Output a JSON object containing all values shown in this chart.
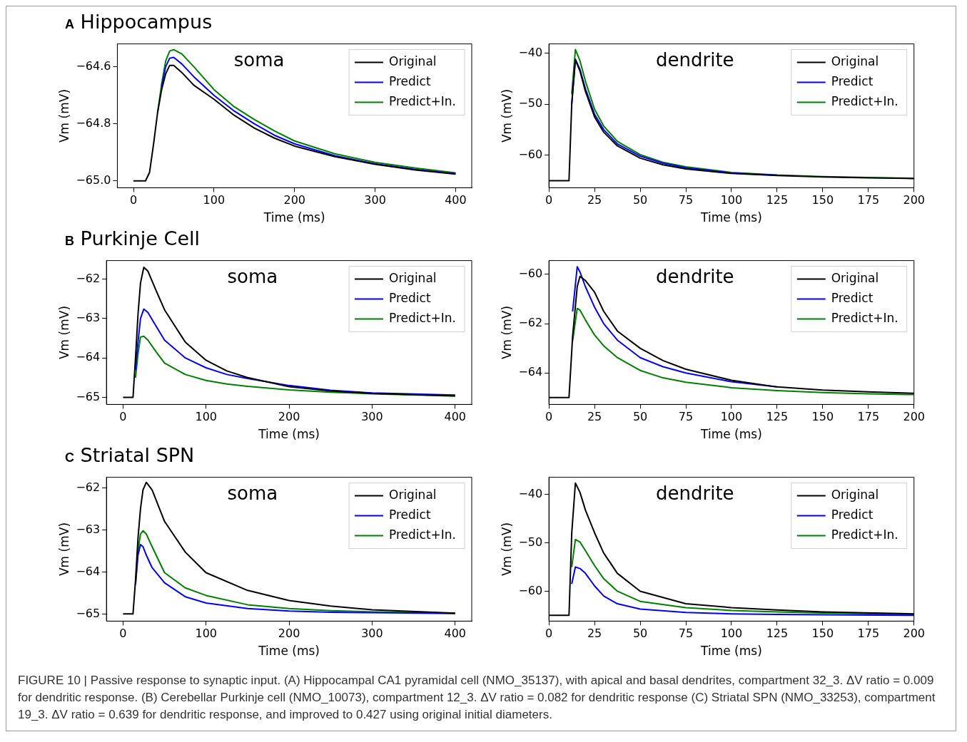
{
  "chart_data": [
    {
      "type": "line",
      "title": "A Hippocampus",
      "xlabel": "Time (ms)",
      "ylabel": "Vm (mV)",
      "annotations": [
        "soma"
      ],
      "legend": "top right",
      "grid": false,
      "marker": "none",
      "line_style": "solid",
      "xlim": [
        -20,
        420
      ],
      "xticks": [
        0,
        100,
        200,
        300,
        400
      ],
      "ylim": [
        -65.024,
        -64.52
      ],
      "yticks": [
        {
          "value": -65,
          "label": "−65.0"
        },
        {
          "value": -64.8,
          "label": "−64.8"
        },
        {
          "value": -64.6,
          "label": "−64.6"
        }
      ],
      "x": [
        0,
        15,
        20,
        25,
        30,
        35,
        40,
        45,
        50,
        60,
        75,
        100,
        125,
        150,
        175,
        200,
        250,
        300,
        350,
        400
      ],
      "series": [
        {
          "name": "Original",
          "color": "#000000",
          "values": [
            -65,
            -65,
            -64.97,
            -64.87,
            -64.76,
            -64.68,
            -64.625,
            -64.595,
            -64.595,
            -64.62,
            -64.665,
            -64.714,
            -64.77,
            -64.815,
            -64.85,
            -64.878,
            -64.915,
            -64.942,
            -64.962,
            -64.976
          ]
        },
        {
          "name": "Predict",
          "color": "#0000ff",
          "values": [
            null,
            null,
            null,
            null,
            null,
            -64.67,
            -64.6,
            -64.57,
            -64.567,
            -64.59,
            -64.635,
            -64.7,
            -64.755,
            -64.8,
            -64.84,
            -64.87,
            -64.912,
            -64.94,
            -64.96,
            -64.975
          ]
        },
        {
          "name": "Predict+In.",
          "color": "#008000",
          "values": [
            null,
            null,
            null,
            null,
            -64.76,
            -64.66,
            -64.58,
            -64.545,
            -64.54,
            -64.555,
            -64.6,
            -64.68,
            -64.74,
            -64.785,
            -64.825,
            -64.86,
            -64.905,
            -64.935,
            -64.955,
            -64.972
          ]
        }
      ]
    },
    {
      "type": "line",
      "xlabel": "Time (ms)",
      "ylabel": "Vm (mV)",
      "annotations": [
        "dendrite"
      ],
      "legend": "top right",
      "grid": false,
      "marker": "none",
      "line_style": "solid",
      "xlim": [
        0,
        200
      ],
      "xticks": [
        0,
        25,
        50,
        75,
        100,
        125,
        150,
        175,
        200
      ],
      "ylim": [
        -66.4,
        -38.2
      ],
      "yticks": [
        -60,
        -50,
        -40
      ],
      "x": [
        0,
        10,
        11,
        12.5,
        14.5,
        17,
        20,
        25,
        30,
        37.5,
        50,
        62.5,
        75,
        100,
        125,
        150,
        175,
        200
      ],
      "series": [
        {
          "name": "Original",
          "color": "#000000",
          "values": [
            -65,
            -65,
            -65,
            -50,
            -41.3,
            -43.5,
            -47.5,
            -52.5,
            -55.5,
            -58.2,
            -60.6,
            -61.9,
            -62.7,
            -63.6,
            -64,
            -64.3,
            -64.45,
            -64.6
          ]
        },
        {
          "name": "Predict",
          "color": "#0000ff",
          "values": [
            null,
            null,
            null,
            -50,
            -41.2,
            -43.2,
            -47,
            -52,
            -55,
            -57.8,
            -60.2,
            -61.6,
            -62.5,
            -63.5,
            -63.95,
            null,
            null,
            null
          ]
        },
        {
          "name": "Predict+In.",
          "color": "#008000",
          "values": [
            null,
            null,
            null,
            -48,
            -39.3,
            -41.5,
            -45.5,
            -51,
            -54.3,
            -57.3,
            -59.9,
            -61.4,
            -62.3,
            -63.4,
            -63.9,
            -64.2,
            -64.4,
            -64.55
          ]
        }
      ]
    },
    {
      "type": "line",
      "title": "B Purkinje Cell",
      "xlabel": "Time (ms)",
      "ylabel": "Vm (mV)",
      "annotations": [
        "soma"
      ],
      "legend": "top right",
      "grid": false,
      "marker": "none",
      "line_style": "solid",
      "xlim": [
        -20,
        420
      ],
      "xticks": [
        0,
        100,
        200,
        300,
        400
      ],
      "ylim": [
        -65.18,
        -61.53
      ],
      "yticks": [
        -65,
        -64,
        -63,
        -62
      ],
      "x": [
        0,
        10,
        12,
        15,
        18,
        21,
        25,
        30,
        40,
        50,
        75,
        100,
        125,
        150,
        200,
        250,
        300,
        400
      ],
      "series": [
        {
          "name": "Original",
          "color": "#000000",
          "values": [
            -65,
            -65,
            -65,
            -64,
            -62.9,
            -62.1,
            -61.7,
            -61.8,
            -62.3,
            -62.78,
            -63.6,
            -64.06,
            -64.33,
            -64.5,
            -64.73,
            -64.84,
            -64.9,
            -64.96
          ]
        },
        {
          "name": "Predict",
          "color": "#0000ff",
          "values": [
            null,
            null,
            null,
            -64.3,
            -63.6,
            -63,
            -62.76,
            -62.85,
            -63.2,
            -63.55,
            -64,
            -64.25,
            -64.42,
            -64.52,
            -64.7,
            -64.82,
            -64.89,
            -64.94
          ]
        },
        {
          "name": "Predict+In.",
          "color": "#008000",
          "values": [
            null,
            null,
            null,
            -64.5,
            -63.9,
            -63.47,
            -63.45,
            -63.55,
            -63.85,
            -64.13,
            -64.42,
            -64.57,
            -64.66,
            -64.72,
            -64.81,
            -64.87,
            -64.91,
            -64.97
          ]
        }
      ]
    },
    {
      "type": "line",
      "xlabel": "Time (ms)",
      "ylabel": "Vm (mV)",
      "annotations": [
        "dendrite"
      ],
      "legend": "top right",
      "grid": false,
      "marker": "none",
      "line_style": "solid",
      "xlim": [
        0,
        200
      ],
      "xticks": [
        0,
        25,
        50,
        75,
        100,
        125,
        150,
        175,
        200
      ],
      "ylim": [
        -65.28,
        -59.44
      ],
      "yticks": [
        -64,
        -62,
        -60
      ],
      "x": [
        0,
        10,
        11,
        13,
        15.5,
        17,
        20,
        25,
        30,
        37.5,
        50,
        62.5,
        75,
        100,
        125,
        150,
        175,
        200
      ],
      "series": [
        {
          "name": "Original",
          "color": "#000000",
          "values": [
            -65,
            -65,
            -65,
            -62.5,
            -60.5,
            -60.08,
            -60.25,
            -60.72,
            -61.5,
            -62.3,
            -63,
            -63.5,
            -63.85,
            -64.3,
            -64.57,
            -64.7,
            -64.77,
            -64.83
          ]
        },
        {
          "name": "Predict",
          "color": "#0000ff",
          "values": [
            null,
            null,
            null,
            -61.5,
            -59.69,
            -59.9,
            -60.5,
            -61.33,
            -62,
            -62.67,
            -63.38,
            -63.75,
            -64,
            -64.36,
            -64.57,
            null,
            null,
            null
          ]
        },
        {
          "name": "Predict+In.",
          "color": "#008000",
          "values": [
            null,
            null,
            null,
            -62.7,
            -61.38,
            -61.45,
            -61.85,
            -62.46,
            -62.9,
            -63.38,
            -63.9,
            -64.2,
            -64.38,
            -64.6,
            -64.72,
            -64.8,
            -64.85,
            -64.88
          ]
        }
      ]
    },
    {
      "type": "line",
      "title": "C Striatal SPN",
      "xlabel": "Time (ms)",
      "ylabel": "Vm (mV)",
      "annotations": [
        "soma"
      ],
      "legend": "top right",
      "grid": false,
      "marker": "none",
      "line_style": "solid",
      "xlim": [
        -20,
        420
      ],
      "xticks": [
        0,
        100,
        200,
        300,
        400
      ],
      "ylim": [
        -65.17,
        -61.75
      ],
      "yticks": [
        -65,
        -64,
        -63,
        -62
      ],
      "x": [
        0,
        10,
        12,
        15,
        18,
        21,
        24,
        28,
        35,
        50,
        75,
        100,
        150,
        200,
        250,
        300,
        400
      ],
      "series": [
        {
          "name": "Original",
          "color": "#000000",
          "values": [
            -65,
            -65,
            -65,
            -64.2,
            -63.2,
            -62.5,
            -62.05,
            -61.87,
            -62.05,
            -62.8,
            -63.53,
            -64.02,
            -64.44,
            -64.68,
            -64.81,
            -64.9,
            -64.98
          ]
        },
        {
          "name": "Predict",
          "color": "#0000ff",
          "values": [
            null,
            null,
            null,
            -64.3,
            -63.6,
            -63.35,
            -63.4,
            -63.6,
            -63.9,
            -64.26,
            -64.59,
            -64.74,
            -64.87,
            -64.93,
            -64.96,
            -64.97,
            -64.99
          ]
        },
        {
          "name": "Predict+In.",
          "color": "#008000",
          "values": [
            null,
            null,
            null,
            -64.3,
            -63.5,
            -63.1,
            -63.02,
            -63.1,
            -63.4,
            -64.02,
            -64.38,
            -64.56,
            -64.78,
            -64.87,
            -64.92,
            -64.95,
            -64.98
          ]
        }
      ]
    },
    {
      "type": "line",
      "xlabel": "Time (ms)",
      "ylabel": "Vm (mV)",
      "annotations": [
        "dendrite",
        "FIGURE 10 | Passive response to synaptic input. (A) Hippocampal CA1 pyramidal cell (NMO_35137), with apical and basal dendrites, compartment 32_3. ΔV ratio = 0.009 for dendritic response. (B) Cerebellar Purkinje cell (NMO_10073), compartment 12_3. ΔV ratio = 0.082 for dendritic response (C) Striatal SPN (NMO_33253), compartment 19_3. ΔV ratio = 0.639 for dendritic response, and improved to 0.427 using original initial diameters."
      ],
      "legend": "top right",
      "grid": false,
      "marker": "none",
      "line_style": "solid",
      "xlim": [
        0,
        200
      ],
      "xticks": [
        0,
        25,
        50,
        75,
        100,
        125,
        150,
        175,
        200
      ],
      "ylim": [
        -66.2,
        -36.4
      ],
      "yticks": [
        -60,
        -50,
        -40
      ],
      "x": [
        0,
        10,
        11,
        12.5,
        14.5,
        17,
        20,
        25,
        30,
        37.5,
        50,
        75,
        100,
        125,
        150,
        200
      ],
      "series": [
        {
          "name": "Original",
          "color": "#000000",
          "values": [
            -65,
            -65,
            -65,
            -48,
            -37.6,
            -39.5,
            -43.2,
            -47.9,
            -52.1,
            -56.3,
            -60,
            -62.6,
            -63.4,
            -63.9,
            -64.3,
            -64.7
          ]
        },
        {
          "name": "Predict",
          "color": "#0000ff",
          "values": [
            null,
            null,
            null,
            -58.5,
            -55,
            -55.3,
            -56.3,
            -58.9,
            -61,
            -62.6,
            -63.7,
            -64.4,
            -64.7,
            -64.8,
            -64.9,
            -65
          ]
        },
        {
          "name": "Predict+In.",
          "color": "#008000",
          "values": [
            null,
            null,
            null,
            -55,
            -49.3,
            -49.8,
            -51.6,
            -54.7,
            -57.4,
            -60,
            -62.1,
            -63.4,
            -64,
            -64.3,
            -64.5,
            -64.8
          ]
        }
      ]
    }
  ]
}
